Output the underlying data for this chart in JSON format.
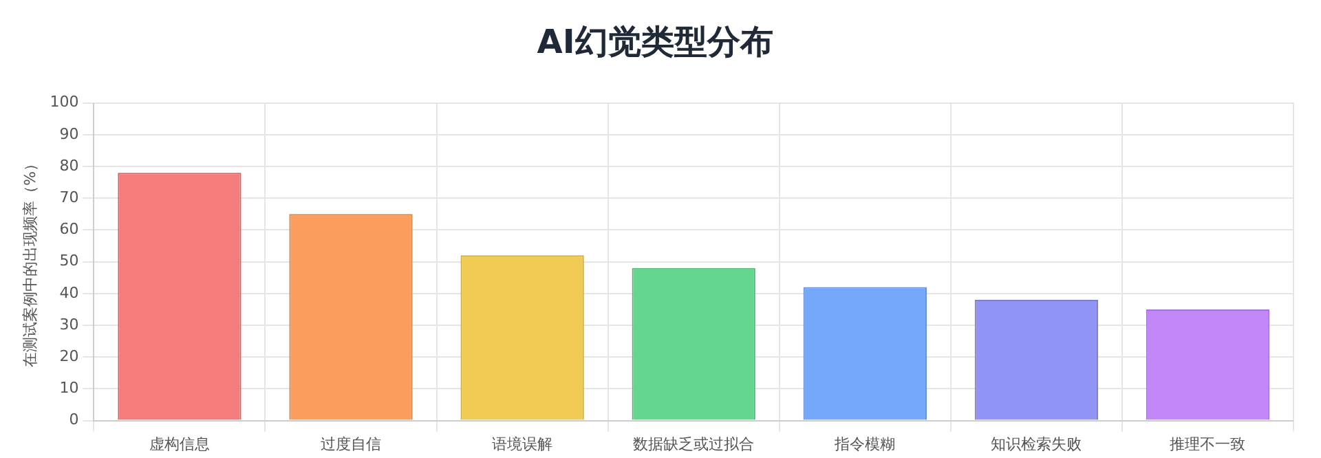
{
  "chart_data": {
    "type": "bar",
    "title": "AI幻觉类型分布",
    "ylabel": "在测试案例中的出现频率（%）",
    "categories": [
      "虚构信息",
      "过度自信",
      "语境误解",
      "数据缺乏或过拟合",
      "指令模糊",
      "知识检索失败",
      "推理不一致"
    ],
    "values": [
      78,
      65,
      52,
      48,
      42,
      38,
      35
    ],
    "colors": [
      "#f47c7c",
      "#fb9d5c",
      "#f0ca52",
      "#64d68e",
      "#76a8f9",
      "#9294f5",
      "#c288f9"
    ],
    "ylim": [
      0,
      100
    ],
    "yticks": [
      0,
      10,
      20,
      30,
      40,
      50,
      60,
      70,
      80,
      90,
      100
    ],
    "grid": true,
    "legend": false
  }
}
